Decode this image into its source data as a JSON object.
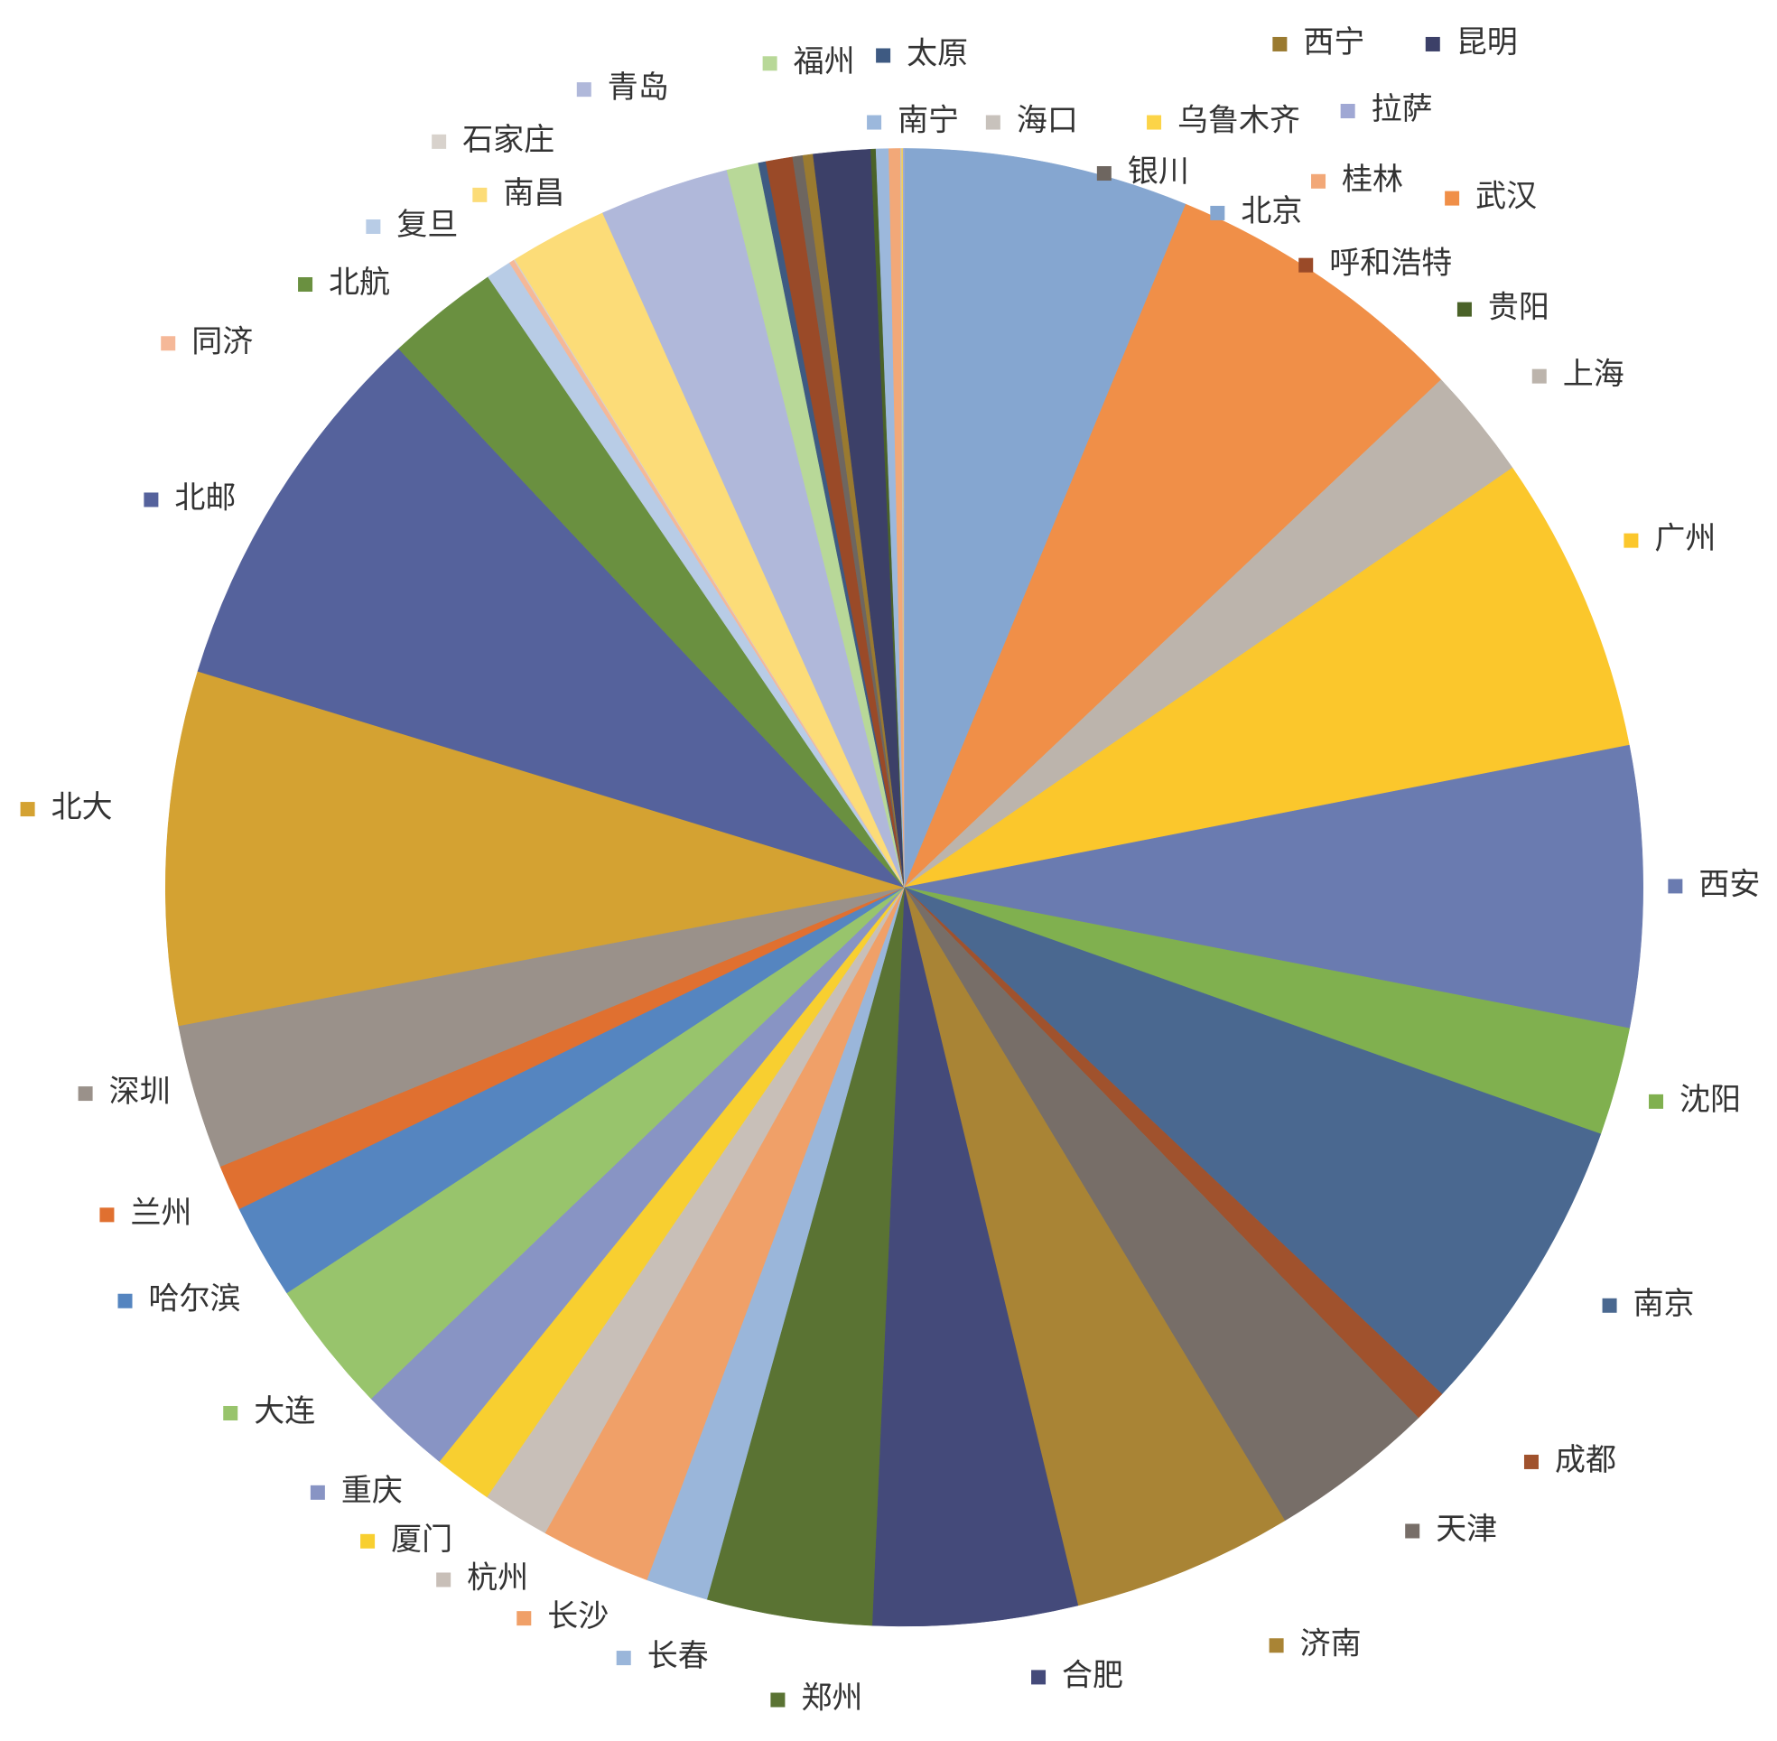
{
  "chart_data": {
    "type": "pie",
    "categories": [
      "北京",
      "武汉",
      "上海",
      "广州",
      "西安",
      "沈阳",
      "南京",
      "成都",
      "天津",
      "济南",
      "合肥",
      "郑州",
      "长春",
      "长沙",
      "杭州",
      "厦门",
      "重庆",
      "大连",
      "哈尔滨",
      "兰州",
      "深圳",
      "北大",
      "北邮",
      "北航",
      "复旦",
      "同济",
      "石家庄",
      "南昌",
      "青岛",
      "福州",
      "太原",
      "呼和浩特",
      "银川",
      "西宁",
      "昆明",
      "贵阳",
      "南宁",
      "桂林",
      "海口",
      "乌鲁木齐",
      "拉萨"
    ],
    "values": [
      22.4,
      24.2,
      8.8,
      23.5,
      22.1,
      8.5,
      23.8,
      2.6,
      13.1,
      17.4,
      16.1,
      13.0,
      4.9,
      8.7,
      5.3,
      4.6,
      7.2,
      10.5,
      7.5,
      3.6,
      11.4,
      27.8,
      29.8,
      8.9,
      2.0,
      0.4,
      0.1,
      7.7,
      10.2,
      2.5,
      0.6,
      2.1,
      0.8,
      0.8,
      4.5,
      0.4,
      1.0,
      0.9,
      0.1,
      0.1,
      0.1
    ],
    "colors": [
      "#85a6d0",
      "#f08f48",
      "#bcb4ac",
      "#fbc72c",
      "#6a7bb0",
      "#80b04f",
      "#4a6890",
      "#a0522d",
      "#776e68",
      "#a98435",
      "#444a7a",
      "#5a7333",
      "#9ab6da",
      "#f0a068",
      "#c8bfb8",
      "#f8cf30",
      "#8894c4",
      "#98c46c",
      "#5585c0",
      "#e07030",
      "#9a918a",
      "#d4a232",
      "#55629c",
      "#6a9040",
      "#b8cce6",
      "#f5b898",
      "#d8d2cc",
      "#fcdc78",
      "#b0b8da",
      "#b8d898",
      "#3e5a82",
      "#9a4a28",
      "#6e6660",
      "#9a7a30",
      "#3c4068",
      "#4a6228",
      "#9cb8dc",
      "#f2a878",
      "#c8c2bc",
      "#fcd448",
      "#a0a8d4"
    ]
  }
}
